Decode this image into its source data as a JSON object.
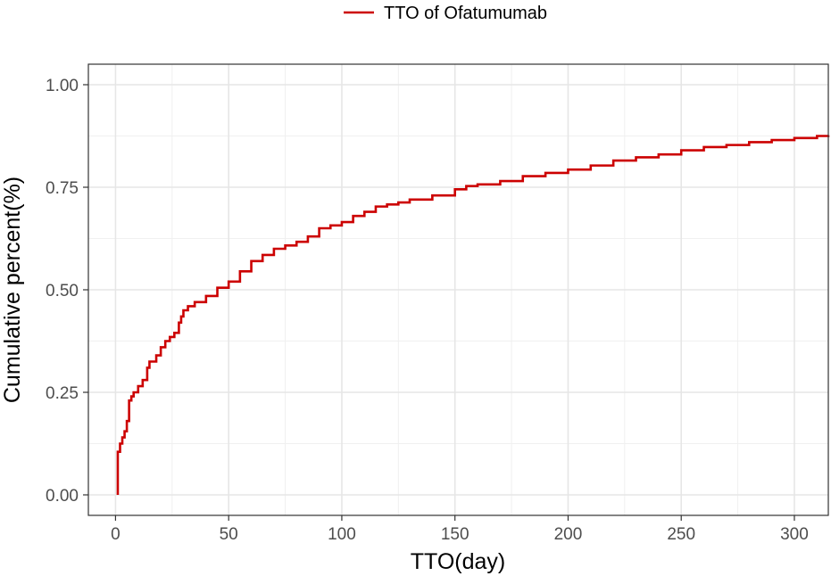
{
  "chart_data": {
    "type": "line",
    "step": true,
    "xlabel": "TTO(day)",
    "ylabel": "Cumulative percent(%)",
    "xlim": [
      -12,
      315
    ],
    "ylim": [
      -0.05,
      1.05
    ],
    "x_ticks": [
      0,
      50,
      100,
      150,
      200,
      250,
      300
    ],
    "x_tick_labels": [
      "0",
      "50",
      "100",
      "150",
      "200",
      "250",
      "300"
    ],
    "y_ticks": [
      0,
      0.25,
      0.5,
      0.75,
      1.0
    ],
    "y_tick_labels": [
      "0.00",
      "0.25",
      "0.50",
      "0.75",
      "1.00"
    ],
    "grid": true,
    "legend_position": "top",
    "series": [
      {
        "name": "TTO of Ofatumumab",
        "color": "#cc0000",
        "x": [
          1,
          1,
          2,
          3,
          4,
          5,
          6,
          7,
          8,
          10,
          12,
          14,
          15,
          18,
          20,
          22,
          24,
          26,
          28,
          29,
          30,
          32,
          35,
          40,
          45,
          50,
          55,
          60,
          65,
          70,
          75,
          80,
          85,
          90,
          95,
          100,
          105,
          110,
          115,
          120,
          125,
          130,
          140,
          150,
          155,
          160,
          170,
          180,
          190,
          200,
          210,
          220,
          230,
          240,
          250,
          260,
          270,
          280,
          290,
          300,
          310,
          315
        ],
        "y": [
          0.0,
          0.105,
          0.125,
          0.14,
          0.155,
          0.18,
          0.23,
          0.24,
          0.25,
          0.265,
          0.28,
          0.31,
          0.325,
          0.34,
          0.36,
          0.375,
          0.385,
          0.395,
          0.42,
          0.435,
          0.45,
          0.46,
          0.47,
          0.485,
          0.505,
          0.52,
          0.545,
          0.57,
          0.585,
          0.6,
          0.608,
          0.617,
          0.63,
          0.65,
          0.657,
          0.665,
          0.68,
          0.69,
          0.703,
          0.708,
          0.713,
          0.72,
          0.73,
          0.745,
          0.753,
          0.757,
          0.765,
          0.777,
          0.785,
          0.793,
          0.803,
          0.815,
          0.823,
          0.83,
          0.84,
          0.848,
          0.853,
          0.86,
          0.865,
          0.87,
          0.875,
          0.877
        ]
      }
    ]
  }
}
